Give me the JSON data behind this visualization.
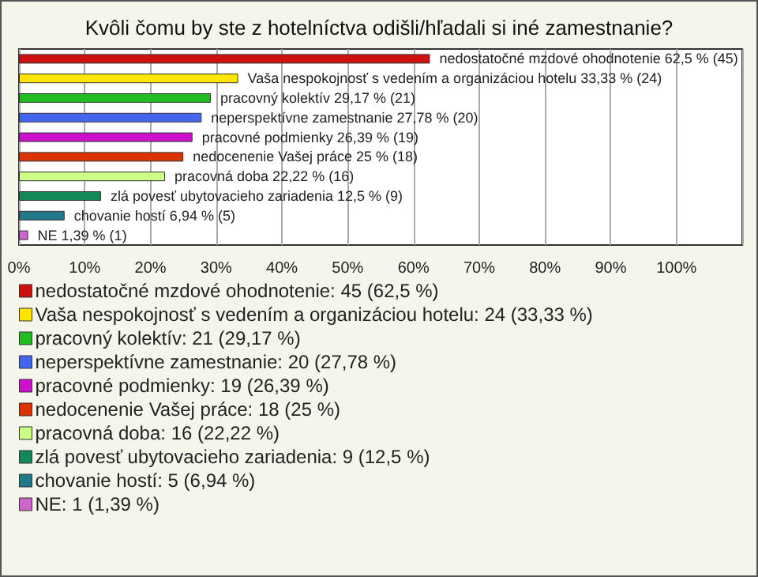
{
  "chart_data": {
    "type": "bar",
    "title": "Kvôli čomu by ste z hotelníctva odišli/hľadali si iné zamestnanie?",
    "orientation": "horizontal",
    "stacked": true,
    "grid": "x",
    "legend": "bottom",
    "categories": [
      null,
      null,
      null,
      null,
      null,
      null,
      null,
      null,
      null,
      null
    ],
    "xlim": [
      0,
      110
    ],
    "xticks": [
      {
        "value": 0,
        "label": "0%"
      },
      {
        "value": 10,
        "label": "10%"
      },
      {
        "value": 20,
        "label": "20%"
      },
      {
        "value": 30,
        "label": "30%"
      },
      {
        "value": 40,
        "label": "40%"
      },
      {
        "value": 50,
        "label": "50%"
      },
      {
        "value": 60,
        "label": "60%"
      },
      {
        "value": 70,
        "label": "70%"
      },
      {
        "value": 80,
        "label": "80%"
      },
      {
        "value": 90,
        "label": "90%"
      },
      {
        "value": 100,
        "label": "100%"
      },
      {
        "value": 110,
        "label": null
      }
    ],
    "series": [
      {
        "name": "nedostatočné mzdové ohodnotenie: 45 (62,5 %)",
        "color": "#cc1111",
        "values": [
          62.5,
          null,
          null,
          null,
          null,
          null,
          null,
          null,
          null,
          null
        ],
        "value_labels": [
          "nedostatočné mzdové ohodnotenie 62,5 % (45)",
          null,
          null,
          null,
          null,
          null,
          null,
          null,
          null,
          null
        ]
      },
      {
        "name": "Vaša nespokojnosť s vedením a organizáciou hotelu: 24 (33,33 %)",
        "color": "#ffe500",
        "values": [
          null,
          33.33,
          null,
          null,
          null,
          null,
          null,
          null,
          null,
          null
        ],
        "value_labels": [
          null,
          "Vaša nespokojnosť s vedením a organizáciou hotelu 33,33 % (24)",
          null,
          null,
          null,
          null,
          null,
          null,
          null,
          null
        ]
      },
      {
        "name": "pracovný kolektív: 21 (29,17 %)",
        "color": "#22bb22",
        "values": [
          null,
          null,
          29.17,
          null,
          null,
          null,
          null,
          null,
          null,
          null
        ],
        "value_labels": [
          null,
          null,
          "pracovný kolektív 29,17 % (21)",
          null,
          null,
          null,
          null,
          null,
          null,
          null
        ]
      },
      {
        "name": "neperspektívne zamestnanie: 20 (27,78 %)",
        "color": "#4466ee",
        "values": [
          null,
          null,
          null,
          27.78,
          null,
          null,
          null,
          null,
          null,
          null
        ],
        "value_labels": [
          null,
          null,
          null,
          "neperspektívne zamestnanie 27,78 % (20)",
          null,
          null,
          null,
          null,
          null,
          null
        ]
      },
      {
        "name": "pracovné podmienky: 19 (26,39 %)",
        "color": "#cc11cc",
        "values": [
          null,
          null,
          null,
          null,
          26.39,
          null,
          null,
          null,
          null,
          null
        ],
        "value_labels": [
          null,
          null,
          null,
          null,
          "pracovné podmienky 26,39 % (19)",
          null,
          null,
          null,
          null,
          null
        ]
      },
      {
        "name": "nedocenenie Vašej práce: 18 (25 %)",
        "color": "#dd3300",
        "values": [
          null,
          null,
          null,
          null,
          null,
          25,
          null,
          null,
          null,
          null
        ],
        "value_labels": [
          null,
          null,
          null,
          null,
          null,
          "nedocenenie Vašej práce 25 % (18)",
          null,
          null,
          null,
          null
        ]
      },
      {
        "name": "pracovná doba: 16 (22,22 %)",
        "color": "#ccff88",
        "values": [
          null,
          null,
          null,
          null,
          null,
          null,
          22.22,
          null,
          null,
          null
        ],
        "value_labels": [
          null,
          null,
          null,
          null,
          null,
          null,
          "pracovná doba 22,22 % (16)",
          null,
          null,
          null
        ]
      },
      {
        "name": "zlá povesť ubytovacieho zariadenia: 9 (12,5 %)",
        "color": "#118855",
        "values": [
          null,
          null,
          null,
          null,
          null,
          null,
          null,
          12.5,
          null,
          null
        ],
        "value_labels": [
          null,
          null,
          null,
          null,
          null,
          null,
          null,
          "zlá povesť ubytovacieho zariadenia 12,5 % (9)",
          null,
          null
        ]
      },
      {
        "name": "chovanie hostí: 5 (6,94 %)",
        "color": "#227788",
        "values": [
          null,
          null,
          null,
          null,
          null,
          null,
          null,
          null,
          6.94,
          null
        ],
        "value_labels": [
          null,
          null,
          null,
          null,
          null,
          null,
          null,
          null,
          "chovanie hostí 6,94 % (5)",
          null
        ]
      },
      {
        "name": "NE: 1 (1,39 %)",
        "color": "#cc66cc",
        "values": [
          null,
          null,
          null,
          null,
          null,
          null,
          null,
          null,
          null,
          1.39
        ],
        "value_labels": [
          null,
          null,
          null,
          null,
          null,
          null,
          null,
          null,
          null,
          "NE 1,39 % (1)"
        ]
      }
    ]
  }
}
